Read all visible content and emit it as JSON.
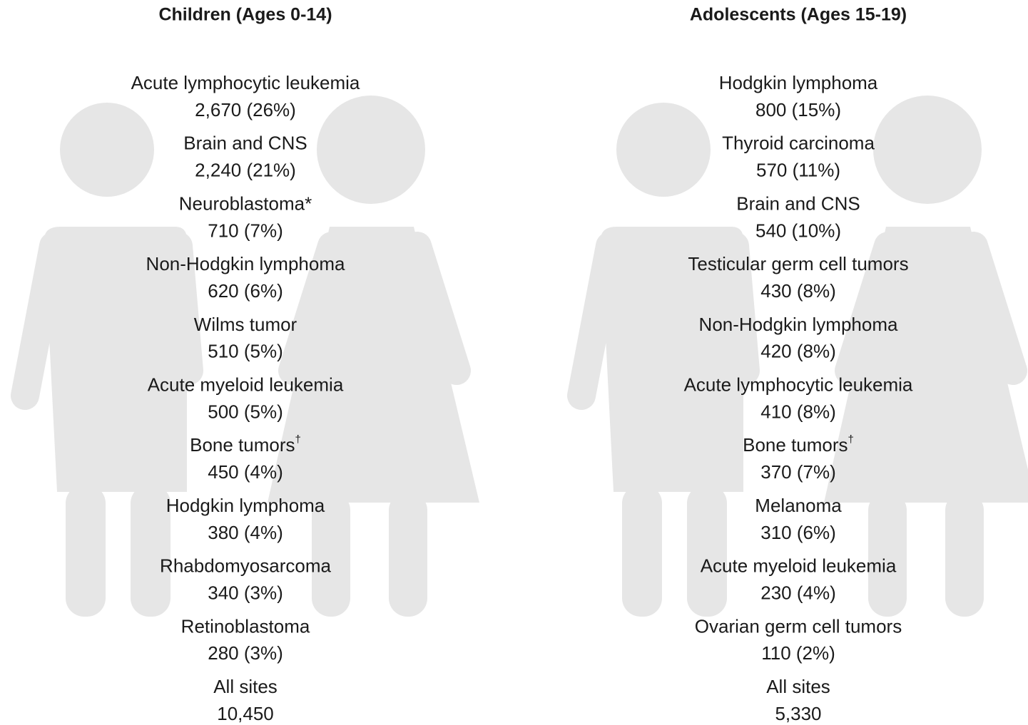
{
  "panels": [
    {
      "title": "Children (Ages 0-14)",
      "items": [
        {
          "label": "Acute lymphocytic leukemia",
          "value": "2,670 (26%)"
        },
        {
          "label": "Brain and CNS",
          "value": "2,240 (21%)"
        },
        {
          "label": "Neuroblastoma*",
          "value": "710 (7%)"
        },
        {
          "label": "Non-Hodgkin lymphoma",
          "value": "620 (6%)"
        },
        {
          "label": "Wilms tumor",
          "value": "510 (5%)"
        },
        {
          "label": "Acute myeloid leukemia",
          "value": "500 (5%)"
        },
        {
          "label": "Bone tumors",
          "mark": "†",
          "value": "450 (4%)"
        },
        {
          "label": "Hodgkin lymphoma",
          "value": "380 (4%)"
        },
        {
          "label": "Rhabdomyosarcoma",
          "value": "340 (3%)"
        },
        {
          "label": "Retinoblastoma",
          "value": "280 (3%)"
        },
        {
          "label": "All sites",
          "value": "10,450"
        }
      ]
    },
    {
      "title": "Adolescents (Ages 15-19)",
      "items": [
        {
          "label": "Hodgkin lymphoma",
          "value": "800 (15%)"
        },
        {
          "label": "Thyroid carcinoma",
          "value": "570 (11%)"
        },
        {
          "label": "Brain and CNS",
          "value": "540 (10%)"
        },
        {
          "label": "Testicular germ cell tumors",
          "value": "430 (8%)"
        },
        {
          "label": "Non-Hodgkin lymphoma",
          "value": "420 (8%)"
        },
        {
          "label": "Acute lymphocytic leukemia",
          "value": "410 (8%)"
        },
        {
          "label": "Bone tumors",
          "mark": "†",
          "value": "370 (7%)"
        },
        {
          "label": "Melanoma",
          "value": "310 (6%)"
        },
        {
          "label": "Acute myeloid leukemia",
          "value": "230 (4%)"
        },
        {
          "label": "Ovarian germ cell tumors",
          "value": "110 (2%)"
        },
        {
          "label": "All sites",
          "value": "5,330"
        }
      ]
    }
  ]
}
